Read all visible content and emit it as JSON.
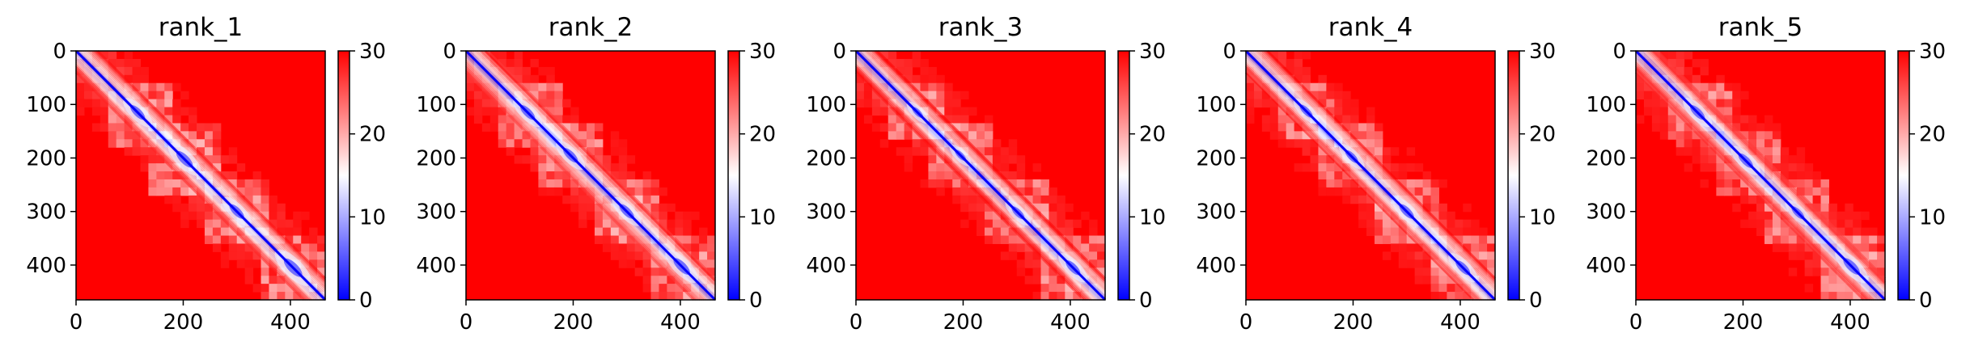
{
  "chart_data": [
    {
      "type": "heatmap",
      "title": "rank_1",
      "matrix_size": 465,
      "x_ticks": [
        0,
        200,
        400
      ],
      "y_ticks": [
        0,
        100,
        200,
        300,
        400
      ],
      "colorbar": {
        "min": 0,
        "max": 30,
        "ticks": [
          0,
          10,
          20,
          30
        ],
        "colormap": "bwr"
      },
      "diagonal_blocks": [
        [
          95,
          135
        ],
        [
          180,
          225
        ],
        [
          280,
          320
        ],
        [
          380,
          430
        ]
      ]
    },
    {
      "type": "heatmap",
      "title": "rank_2",
      "matrix_size": 465,
      "x_ticks": [
        0,
        200,
        400
      ],
      "y_ticks": [
        0,
        100,
        200,
        300,
        400
      ],
      "colorbar": {
        "min": 0,
        "max": 30,
        "ticks": [
          0,
          10,
          20,
          30
        ],
        "colormap": "bwr"
      },
      "diagonal_blocks": [
        [
          95,
          135
        ],
        [
          175,
          215
        ],
        [
          280,
          320
        ],
        [
          380,
          425
        ]
      ]
    },
    {
      "type": "heatmap",
      "title": "rank_3",
      "matrix_size": 465,
      "x_ticks": [
        0,
        200,
        400
      ],
      "y_ticks": [
        0,
        100,
        200,
        300,
        400
      ],
      "colorbar": {
        "min": 0,
        "max": 30,
        "ticks": [
          0,
          10,
          20,
          30
        ],
        "colormap": "bwr"
      },
      "diagonal_blocks": [
        [
          100,
          130
        ],
        [
          180,
          210
        ],
        [
          285,
          320
        ],
        [
          385,
          425
        ]
      ]
    },
    {
      "type": "heatmap",
      "title": "rank_4",
      "matrix_size": 465,
      "x_ticks": [
        0,
        200,
        400
      ],
      "y_ticks": [
        0,
        100,
        200,
        300,
        400
      ],
      "colorbar": {
        "min": 0,
        "max": 30,
        "ticks": [
          0,
          10,
          20,
          30
        ],
        "colormap": "bwr"
      },
      "diagonal_blocks": [
        [
          95,
          130
        ],
        [
          180,
          215
        ],
        [
          280,
          320
        ],
        [
          385,
          425
        ]
      ]
    },
    {
      "type": "heatmap",
      "title": "rank_5",
      "matrix_size": 465,
      "x_ticks": [
        0,
        200,
        400
      ],
      "y_ticks": [
        0,
        100,
        200,
        300,
        400
      ],
      "colorbar": {
        "min": 0,
        "max": 30,
        "ticks": [
          0,
          10,
          20,
          30
        ],
        "colormap": "bwr"
      },
      "diagonal_blocks": [
        [
          95,
          135
        ],
        [
          185,
          225
        ],
        [
          285,
          320
        ],
        [
          380,
          425
        ]
      ]
    }
  ],
  "colors": {
    "low": "#0000ff",
    "mid": "#ffffff",
    "high": "#ff0000",
    "axis": "#000000"
  }
}
